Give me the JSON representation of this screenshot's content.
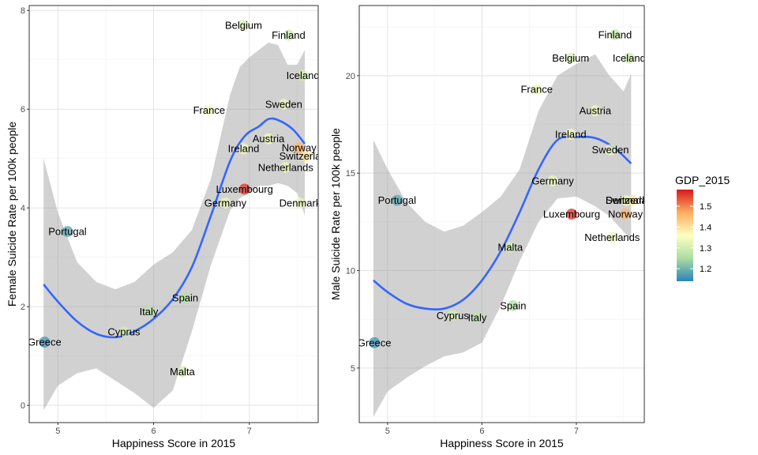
{
  "chart_data": [
    {
      "type": "scatter",
      "xlabel": "Happiness Score in 2015",
      "ylabel": "Female Suicide Rate per 100k people",
      "xlim": [
        4.7,
        7.72
      ],
      "ylim": [
        -0.35,
        8.1
      ],
      "xticks": [
        5,
        6,
        7
      ],
      "yticks": [
        0,
        2,
        4,
        6,
        8
      ],
      "grid": true,
      "smooth_line": {
        "x": [
          4.85,
          5.0,
          5.2,
          5.4,
          5.6,
          5.8,
          6.0,
          6.2,
          6.4,
          6.6,
          6.8,
          6.95,
          7.1,
          7.2,
          7.3,
          7.45,
          7.58
        ],
        "y": [
          2.45,
          2.1,
          1.7,
          1.45,
          1.38,
          1.5,
          1.75,
          2.15,
          2.8,
          3.85,
          4.95,
          5.45,
          5.65,
          5.8,
          5.78,
          5.6,
          5.3
        ]
      },
      "ribbon": {
        "x": [
          4.85,
          5.0,
          5.2,
          5.4,
          5.6,
          5.8,
          6.0,
          6.2,
          6.4,
          6.6,
          6.8,
          6.9,
          7.0,
          7.1,
          7.2,
          7.3,
          7.4,
          7.5,
          7.58
        ],
        "upper": [
          5.0,
          3.9,
          2.9,
          2.5,
          2.35,
          2.5,
          2.85,
          3.1,
          3.55,
          4.6,
          6.3,
          6.85,
          7.05,
          7.2,
          7.35,
          7.3,
          6.9,
          6.9,
          7.2
        ],
        "lower": [
          -0.1,
          0.4,
          0.65,
          0.75,
          0.5,
          0.25,
          -0.05,
          0.3,
          1.5,
          2.85,
          3.95,
          4.2,
          4.3,
          4.45,
          4.45,
          4.5,
          4.45,
          4.3,
          3.85
        ]
      },
      "points": [
        {
          "label": "Greece",
          "x": 4.86,
          "y": 1.28,
          "gdp": 1.16
        },
        {
          "label": "Portugal",
          "x": 5.1,
          "y": 3.52,
          "gdp": 1.18
        },
        {
          "label": "Cyprus",
          "x": 5.69,
          "y": 1.49,
          "gdp": 1.3
        },
        {
          "label": "Italy",
          "x": 5.95,
          "y": 1.9,
          "gdp": 1.27
        },
        {
          "label": "Spain",
          "x": 6.33,
          "y": 2.18,
          "gdp": 1.26
        },
        {
          "label": "Malta",
          "x": 6.3,
          "y": 0.68,
          "gdp": 1.3
        },
        {
          "label": "France",
          "x": 6.58,
          "y": 5.98,
          "gdp": 1.34
        },
        {
          "label": "Germany",
          "x": 6.75,
          "y": 4.1,
          "gdp": 1.33
        },
        {
          "label": "Luxembourg",
          "x": 6.95,
          "y": 4.38,
          "gdp": 1.56
        },
        {
          "label": "Ireland",
          "x": 6.94,
          "y": 5.2,
          "gdp": 1.34
        },
        {
          "label": "Austria",
          "x": 7.2,
          "y": 5.4,
          "gdp": 1.34
        },
        {
          "label": "Belgium",
          "x": 6.94,
          "y": 7.7,
          "gdp": 1.31
        },
        {
          "label": "Finland",
          "x": 7.41,
          "y": 7.5,
          "gdp": 1.29
        },
        {
          "label": "Sweden",
          "x": 7.36,
          "y": 6.1,
          "gdp": 1.33
        },
        {
          "label": "Netherlands",
          "x": 7.38,
          "y": 4.82,
          "gdp": 1.33
        },
        {
          "label": "Norway",
          "x": 7.52,
          "y": 5.22,
          "gdp": 1.46
        },
        {
          "label": "Switzerland",
          "x": 7.59,
          "y": 5.05,
          "gdp": 1.4
        },
        {
          "label": "Iceland",
          "x": 7.56,
          "y": 6.68,
          "gdp": 1.3
        },
        {
          "label": "Denmark",
          "x": 7.53,
          "y": 4.1,
          "gdp": 1.33
        }
      ]
    },
    {
      "type": "scatter",
      "xlabel": "Happiness Score in 2015",
      "ylabel": "Male Suicide Rate per 100k people",
      "xlim": [
        4.7,
        7.72
      ],
      "ylim": [
        2.2,
        23.6
      ],
      "xticks": [
        5,
        6,
        7
      ],
      "yticks": [
        5,
        10,
        15,
        20
      ],
      "grid": true,
      "smooth_line": {
        "x": [
          4.85,
          5.0,
          5.2,
          5.4,
          5.6,
          5.8,
          6.0,
          6.2,
          6.4,
          6.6,
          6.8,
          7.0,
          7.2,
          7.4,
          7.58
        ],
        "y": [
          9.5,
          8.9,
          8.3,
          8.05,
          8.05,
          8.5,
          9.5,
          11.0,
          13.0,
          15.2,
          16.7,
          16.85,
          16.8,
          16.3,
          15.5
        ]
      },
      "ribbon": {
        "x": [
          4.85,
          5.0,
          5.2,
          5.4,
          5.6,
          5.8,
          6.0,
          6.2,
          6.4,
          6.6,
          6.8,
          7.0,
          7.2,
          7.35,
          7.5,
          7.58
        ],
        "upper": [
          16.7,
          15.2,
          13.5,
          12.5,
          12.0,
          12.3,
          13.0,
          13.8,
          15.2,
          18.2,
          20.0,
          20.6,
          21.1,
          20.0,
          19.2,
          20.1
        ],
        "lower": [
          2.5,
          3.8,
          4.5,
          5.1,
          5.6,
          5.8,
          6.3,
          8.2,
          10.5,
          12.5,
          13.7,
          13.8,
          13.3,
          12.8,
          12.0,
          11.6
        ]
      },
      "points": [
        {
          "label": "Greece",
          "x": 4.86,
          "y": 6.3,
          "gdp": 1.16
        },
        {
          "label": "Portugal",
          "x": 5.1,
          "y": 13.6,
          "gdp": 1.18
        },
        {
          "label": "Cyprus",
          "x": 5.69,
          "y": 7.7,
          "gdp": 1.3
        },
        {
          "label": "Italy",
          "x": 5.95,
          "y": 7.6,
          "gdp": 1.27
        },
        {
          "label": "Spain",
          "x": 6.33,
          "y": 8.2,
          "gdp": 1.26
        },
        {
          "label": "Malta",
          "x": 6.3,
          "y": 11.2,
          "gdp": 1.3
        },
        {
          "label": "Germany",
          "x": 6.75,
          "y": 14.6,
          "gdp": 1.33
        },
        {
          "label": "France",
          "x": 6.58,
          "y": 19.3,
          "gdp": 1.34
        },
        {
          "label": "Luxembourg",
          "x": 6.95,
          "y": 12.9,
          "gdp": 1.56
        },
        {
          "label": "Ireland",
          "x": 6.94,
          "y": 17.0,
          "gdp": 1.34
        },
        {
          "label": "Belgium",
          "x": 6.94,
          "y": 20.9,
          "gdp": 1.31
        },
        {
          "label": "Austria",
          "x": 7.2,
          "y": 18.2,
          "gdp": 1.34
        },
        {
          "label": "Finland",
          "x": 7.41,
          "y": 22.1,
          "gdp": 1.29
        },
        {
          "label": "Sweden",
          "x": 7.36,
          "y": 16.2,
          "gdp": 1.33
        },
        {
          "label": "Iceland",
          "x": 7.56,
          "y": 20.9,
          "gdp": 1.3
        },
        {
          "label": "Netherlands",
          "x": 7.38,
          "y": 11.7,
          "gdp": 1.33
        },
        {
          "label": "Norway",
          "x": 7.52,
          "y": 12.9,
          "gdp": 1.46
        },
        {
          "label": "Switzerland",
          "x": 7.59,
          "y": 13.6,
          "gdp": 1.4
        },
        {
          "label": "Denmark",
          "x": 7.53,
          "y": 13.6,
          "gdp": 1.33
        }
      ]
    }
  ],
  "legend": {
    "title": "GDP_2015",
    "range": [
      1.14,
      1.58
    ],
    "breaks": [
      1.2,
      1.3,
      1.4,
      1.5
    ],
    "break_labels": [
      "1.2",
      "1.3",
      "1.4",
      "1.5"
    ],
    "palette": [
      "#2B83BA",
      "#ABDDA4",
      "#FFFFBF",
      "#FDAE61",
      "#D7191C"
    ],
    "position": "right"
  },
  "style": {
    "line_color": "#3366FF",
    "ribbon_color": "#999999",
    "grid_major": "#e3e3e3",
    "grid_minor": "#f2f2f2",
    "panel_border": "#333333"
  }
}
